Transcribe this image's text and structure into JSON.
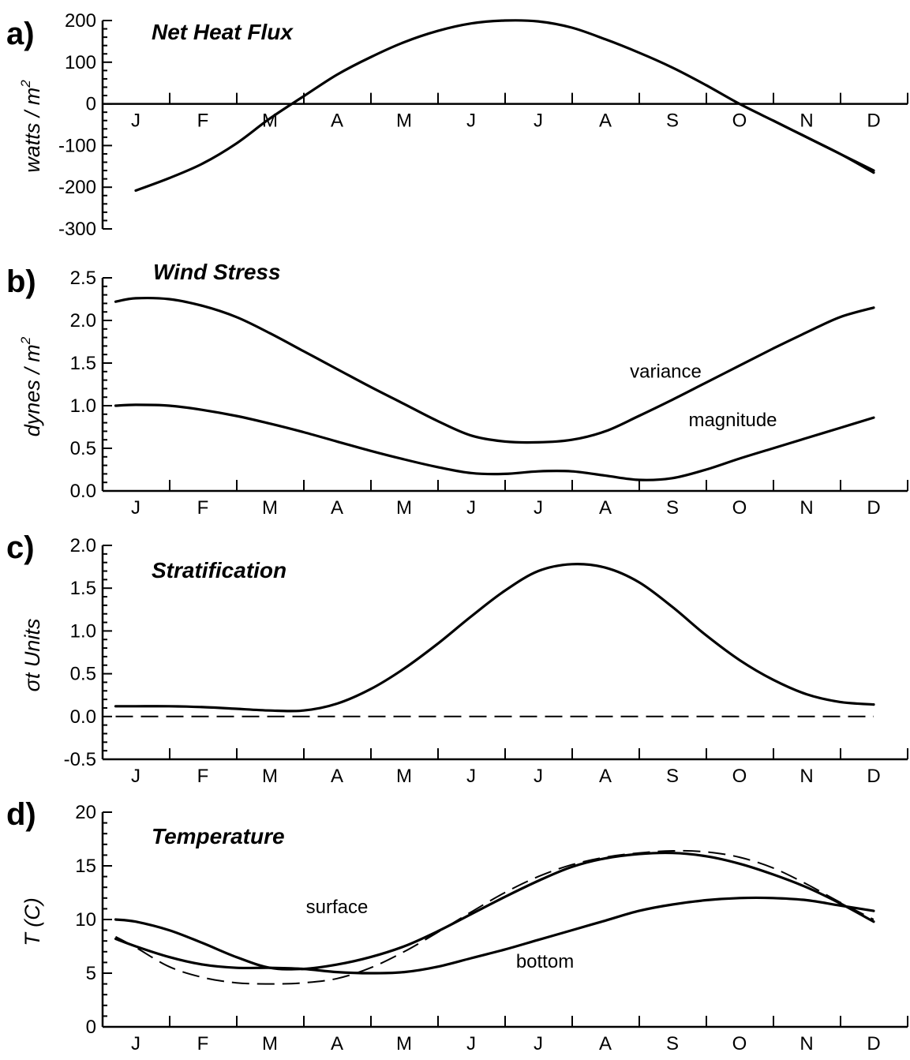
{
  "months": [
    "J",
    "F",
    "M",
    "A",
    "M",
    "J",
    "J",
    "A",
    "S",
    "O",
    "N",
    "D"
  ],
  "chart_data": [
    {
      "type": "line",
      "panel": "a)",
      "title": "Net Heat Flux",
      "ylabel": "watts / m",
      "ylabel_sup": "2",
      "ylim": [
        -300,
        200
      ],
      "yticks": [
        200,
        100,
        0,
        -100,
        -200,
        -300
      ],
      "yticklabels": [
        "200",
        "100",
        "0",
        "-100",
        "-200",
        "-300"
      ],
      "month_axis_at": 0,
      "annotations": [],
      "series": [
        {
          "style": "solid",
          "x": [
            0,
            0.5,
            1,
            1.5,
            2,
            2.5,
            3,
            3.5,
            4,
            4.5,
            5,
            5.5,
            6,
            6.5,
            7,
            7.5,
            8,
            8.5,
            9,
            9.5,
            10,
            10.5,
            11
          ],
          "values": [
            -208,
            -178,
            -143,
            -95,
            -35,
            18,
            70,
            112,
            148,
            175,
            193,
            200,
            198,
            183,
            155,
            123,
            87,
            45,
            0,
            -40,
            -80,
            -120,
            -160
          ]
        },
        {
          "style": "solid",
          "x": [
            9.5,
            10,
            10.5,
            11
          ],
          "values": [
            -40,
            -80,
            -120,
            -165
          ]
        }
      ]
    },
    {
      "type": "line",
      "panel": "b)",
      "title": "Wind Stress",
      "ylabel": "dynes / m",
      "ylabel_sup": "2",
      "ylim": [
        0,
        2.5
      ],
      "yticks": [
        2.5,
        2.0,
        1.5,
        1.0,
        0.5,
        0.0
      ],
      "yticklabels": [
        "2.5",
        "2.0",
        "1.5",
        "1.0",
        "0.5",
        "0.0"
      ],
      "annotations": [
        {
          "text": "variance",
          "x": 7.9,
          "y": 1.33
        },
        {
          "text": "magnitude",
          "x": 8.9,
          "y": 0.76
        }
      ],
      "series": [
        {
          "name": "variance",
          "style": "solid",
          "x": [
            -0.3,
            0,
            0.5,
            1,
            1.5,
            2,
            2.5,
            3,
            3.5,
            4,
            4.5,
            5,
            5.5,
            6,
            6.5,
            7,
            7.5,
            8,
            8.5,
            9,
            9.5,
            10,
            10.5,
            11
          ],
          "values": [
            2.22,
            2.26,
            2.25,
            2.17,
            2.04,
            1.85,
            1.64,
            1.43,
            1.22,
            1.02,
            0.82,
            0.65,
            0.58,
            0.57,
            0.6,
            0.7,
            0.88,
            1.07,
            1.27,
            1.47,
            1.67,
            1.86,
            2.04,
            2.15
          ]
        },
        {
          "name": "magnitude",
          "style": "solid",
          "x": [
            -0.3,
            0,
            0.5,
            1,
            1.5,
            2,
            2.5,
            3,
            3.5,
            4,
            4.5,
            5,
            5.5,
            6,
            6.5,
            7,
            7.5,
            8,
            8.5,
            9,
            9.5,
            10,
            10.5,
            11
          ],
          "values": [
            1.0,
            1.01,
            1.0,
            0.95,
            0.88,
            0.79,
            0.69,
            0.58,
            0.47,
            0.37,
            0.28,
            0.21,
            0.2,
            0.23,
            0.23,
            0.18,
            0.13,
            0.15,
            0.25,
            0.38,
            0.5,
            0.62,
            0.74,
            0.86
          ]
        }
      ]
    },
    {
      "type": "line",
      "panel": "c)",
      "title": "Stratification",
      "ylabel": "σt Units",
      "ylabel_sup": "",
      "ylim": [
        -0.5,
        2.0
      ],
      "yticks": [
        2.0,
        1.5,
        1.0,
        0.5,
        0.0,
        -0.5
      ],
      "yticklabels": [
        "2.0",
        "1.5",
        "1.0",
        "0.5",
        "0.0",
        "-0.5"
      ],
      "annotations": [],
      "series": [
        {
          "style": "solid",
          "x": [
            -0.3,
            0,
            0.5,
            1,
            1.5,
            2,
            2.5,
            3,
            3.5,
            4,
            4.5,
            5,
            5.5,
            6,
            6.5,
            7,
            7.5,
            8,
            8.5,
            9,
            9.5,
            10,
            10.5,
            11
          ],
          "values": [
            0.12,
            0.12,
            0.12,
            0.11,
            0.09,
            0.07,
            0.07,
            0.15,
            0.32,
            0.56,
            0.85,
            1.17,
            1.47,
            1.7,
            1.78,
            1.74,
            1.57,
            1.28,
            0.95,
            0.66,
            0.43,
            0.26,
            0.17,
            0.14
          ]
        },
        {
          "style": "dashed",
          "x": [
            -0.3,
            11
          ],
          "values": [
            0.0,
            0.0
          ]
        }
      ]
    },
    {
      "type": "line",
      "panel": "d)",
      "title": "Temperature",
      "ylabel": "T (C)",
      "ylabel_sup": "",
      "ylim": [
        0,
        20
      ],
      "yticks": [
        20,
        15,
        10,
        5,
        0
      ],
      "yticklabels": [
        "20",
        "15",
        "10",
        "5",
        "0"
      ],
      "annotations": [
        {
          "text": "surface",
          "x": 3.0,
          "y": 10.6
        },
        {
          "text": "bottom",
          "x": 6.1,
          "y": 5.5
        }
      ],
      "series": [
        {
          "name": "surface",
          "style": "solid",
          "x": [
            -0.3,
            0,
            0.5,
            1,
            1.5,
            2,
            2.5,
            3,
            3.5,
            4,
            4.5,
            5,
            5.5,
            6,
            6.5,
            7,
            7.5,
            8,
            8.5,
            9,
            9.5,
            10,
            10.5,
            11
          ],
          "values": [
            10,
            9.8,
            9.0,
            7.8,
            6.5,
            5.5,
            5.4,
            5.8,
            6.5,
            7.5,
            8.9,
            10.5,
            12.1,
            13.6,
            14.9,
            15.7,
            16.1,
            16.2,
            15.9,
            15.2,
            14.2,
            13.0,
            11.5,
            9.8
          ]
        },
        {
          "name": "bottom",
          "style": "solid",
          "x": [
            -0.3,
            0,
            0.5,
            1,
            1.5,
            2,
            2.5,
            3,
            3.5,
            4,
            4.5,
            5,
            5.5,
            6,
            6.5,
            7,
            7.5,
            8,
            8.5,
            9,
            9.5,
            10,
            10.5,
            11
          ],
          "values": [
            8.2,
            7.5,
            6.5,
            5.8,
            5.5,
            5.5,
            5.4,
            5.1,
            5.0,
            5.1,
            5.6,
            6.4,
            7.2,
            8.1,
            9.0,
            9.9,
            10.8,
            11.4,
            11.8,
            12.0,
            12.0,
            11.8,
            11.3,
            10.8
          ]
        },
        {
          "style": "dashed",
          "x": [
            -0.3,
            0,
            0.5,
            1,
            1.5,
            2,
            2.5,
            3,
            3.5,
            4,
            4.5,
            5,
            5.5,
            6,
            6.5,
            7,
            7.5,
            8,
            8.5,
            9,
            9.5,
            10,
            10.5,
            11
          ],
          "values": [
            8.4,
            7.4,
            5.6,
            4.6,
            4.1,
            4.0,
            4.1,
            4.5,
            5.5,
            7.0,
            8.8,
            10.7,
            12.5,
            14.0,
            15.1,
            15.8,
            16.2,
            16.4,
            16.3,
            15.8,
            14.8,
            13.3,
            11.6,
            10.0
          ]
        }
      ]
    }
  ]
}
